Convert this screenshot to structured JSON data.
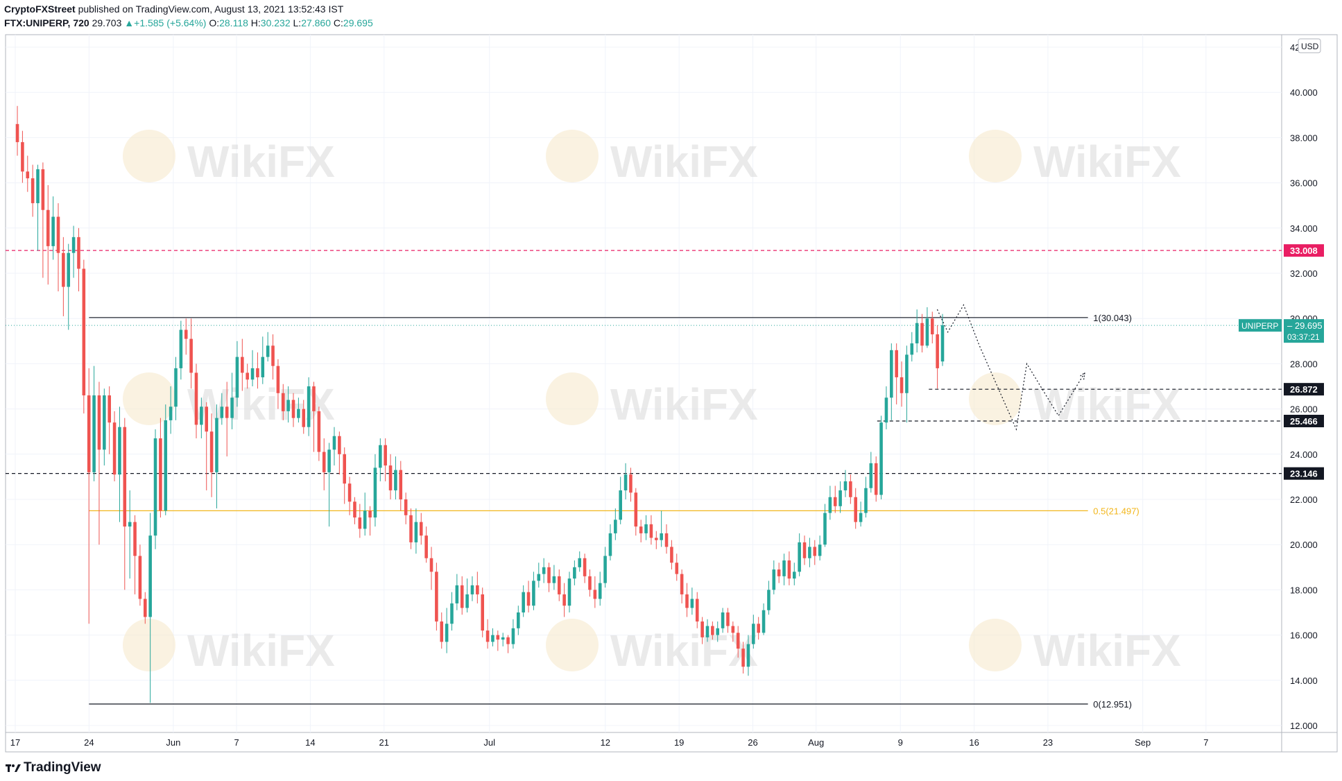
{
  "header": {
    "publisher": "CryptoFXStreet",
    "published_text": "published on TradingView.com, August 13, 2021 13:52:43 IST",
    "symbol": "FTX:UNIPERP, 720",
    "last": "29.703",
    "change": "▲+1.585 (+5.64%)",
    "o_label": "O:",
    "o": "28.118",
    "h_label": "H:",
    "h": "30.232",
    "l_label": "L:",
    "l": "27.860",
    "c_label": "C:",
    "c": "29.695"
  },
  "footer": {
    "brand": "TradingView",
    "logo_icon": "tradingview-logo-icon"
  },
  "watermark": {
    "text": "WikiFX",
    "icon": "wikifx-eagle-icon"
  },
  "chart_data": {
    "type": "candlestick",
    "currency": "USD",
    "ylim": [
      12,
      42
    ],
    "yticks": [
      "12.000",
      "14.000",
      "16.000",
      "18.000",
      "20.000",
      "22.000",
      "24.000",
      "26.000",
      "28.000",
      "30.000",
      "32.000",
      "34.000",
      "36.000",
      "38.000",
      "40.000",
      "42"
    ],
    "xticks": [
      {
        "label": "17",
        "day": 0
      },
      {
        "label": "24",
        "day": 7
      },
      {
        "label": "Jun",
        "day": 15
      },
      {
        "label": "7",
        "day": 21
      },
      {
        "label": "14",
        "day": 28
      },
      {
        "label": "21",
        "day": 35
      },
      {
        "label": "Jul",
        "day": 45
      },
      {
        "label": "12",
        "day": 56
      },
      {
        "label": "19",
        "day": 63
      },
      {
        "label": "26",
        "day": 70
      },
      {
        "label": "Aug",
        "day": 76
      },
      {
        "label": "9",
        "day": 84
      },
      {
        "label": "16",
        "day": 91
      },
      {
        "label": "23",
        "day": 98
      },
      {
        "label": "Sep",
        "day": 107
      },
      {
        "label": "7",
        "day": 113
      }
    ],
    "xlim": [
      0,
      119
    ],
    "fib_levels": [
      {
        "label": "1(30.043)",
        "value": 30.043,
        "color": "#131722"
      },
      {
        "label": "0.5(21.497)",
        "value": 21.497,
        "color": "#f2b61b"
      },
      {
        "label": "0(12.951)",
        "value": 12.951,
        "color": "#131722"
      }
    ],
    "horizontal_levels": [
      {
        "label": "33.008",
        "value": 33.008,
        "color": "#e91e63",
        "style": "dashed"
      },
      {
        "label": "26.872",
        "value": 26.872,
        "color": "#131722",
        "style": "dashed"
      },
      {
        "label": "25.466",
        "value": 25.466,
        "color": "#131722",
        "style": "dashed"
      },
      {
        "label": "23.146",
        "value": 23.146,
        "color": "#131722",
        "style": "dashed"
      }
    ],
    "last_price": {
      "symbol": "UNIPERP",
      "value": "29.695",
      "countdown": "03:37:21",
      "color": "#26a69a"
    },
    "projection_path": [
      [
        87.5,
        30.4
      ],
      [
        88.5,
        29.4
      ],
      [
        90,
        30.6
      ],
      [
        91.5,
        28.8
      ],
      [
        95,
        25.1
      ],
      [
        96,
        28.0
      ],
      [
        99,
        25.7
      ],
      [
        101.5,
        27.6
      ]
    ],
    "candles": [
      [
        38.6,
        37.8,
        39.4,
        37.2
      ],
      [
        37.8,
        36.5,
        38.3,
        36.0
      ],
      [
        36.5,
        36.2,
        37.2,
        35.6
      ],
      [
        36.2,
        35.1,
        36.8,
        34.5
      ],
      [
        35.1,
        36.6,
        36.8,
        33.0
      ],
      [
        36.6,
        34.8,
        36.9,
        31.8
      ],
      [
        34.8,
        33.2,
        35.9,
        31.5
      ],
      [
        33.2,
        34.5,
        35.4,
        32.6
      ],
      [
        34.5,
        32.9,
        35.1,
        31.2
      ],
      [
        32.9,
        31.4,
        33.6,
        30.1
      ],
      [
        31.4,
        32.9,
        33.3,
        29.5
      ],
      [
        32.9,
        33.6,
        34.1,
        31.8
      ],
      [
        33.6,
        32.2,
        34.0,
        31.2
      ],
      [
        32.2,
        26.6,
        32.6,
        25.8
      ],
      [
        26.6,
        23.2,
        27.8,
        16.5
      ],
      [
        23.2,
        26.6,
        27.9,
        22.8
      ],
      [
        26.6,
        24.2,
        27.2,
        20.0
      ],
      [
        24.2,
        26.6,
        26.9,
        23.5
      ],
      [
        26.6,
        25.4,
        27.0,
        24.0
      ],
      [
        25.4,
        23.1,
        25.9,
        22.8
      ],
      [
        23.1,
        25.2,
        26.1,
        21.0
      ],
      [
        25.2,
        20.8,
        25.6,
        18.0
      ],
      [
        20.8,
        21.0,
        22.4,
        18.5
      ],
      [
        21.0,
        19.5,
        21.3,
        17.8
      ],
      [
        19.5,
        17.6,
        20.0,
        17.3
      ],
      [
        17.6,
        16.8,
        17.9,
        16.5
      ],
      [
        16.8,
        20.4,
        21.4,
        13.0
      ],
      [
        20.4,
        24.7,
        25.1,
        19.8
      ],
      [
        24.7,
        21.5,
        25.6,
        21.2
      ],
      [
        21.5,
        25.5,
        26.2,
        21.3
      ],
      [
        25.5,
        26.1,
        27.0,
        24.9
      ],
      [
        26.1,
        27.8,
        28.3,
        25.5
      ],
      [
        27.8,
        29.5,
        29.9,
        27.3
      ],
      [
        29.5,
        29.1,
        30.0,
        28.4
      ],
      [
        29.1,
        27.6,
        30.0,
        26.9
      ],
      [
        27.6,
        25.3,
        28.0,
        24.7
      ],
      [
        25.3,
        26.1,
        26.5,
        24.7
      ],
      [
        26.1,
        25.0,
        26.3,
        22.4
      ],
      [
        25.0,
        23.2,
        25.8,
        22.1
      ],
      [
        23.2,
        25.6,
        26.2,
        21.6
      ],
      [
        25.6,
        26.1,
        26.7,
        25.3
      ],
      [
        26.1,
        25.6,
        27.2,
        23.9
      ],
      [
        25.6,
        26.5,
        27.6,
        25.1
      ],
      [
        26.5,
        28.3,
        29.0,
        26.1
      ],
      [
        28.3,
        27.6,
        29.1,
        26.8
      ],
      [
        27.6,
        27.3,
        28.0,
        26.9
      ],
      [
        27.3,
        27.8,
        28.6,
        27.0
      ],
      [
        27.8,
        27.4,
        28.5,
        26.9
      ],
      [
        27.4,
        28.3,
        29.2,
        27.1
      ],
      [
        28.3,
        28.8,
        29.4,
        28.1
      ],
      [
        28.8,
        27.9,
        29.3,
        27.3
      ],
      [
        27.9,
        26.7,
        28.2,
        26.0
      ],
      [
        26.7,
        25.9,
        27.1,
        25.5
      ],
      [
        25.9,
        26.4,
        27.0,
        25.4
      ],
      [
        26.4,
        25.6,
        26.7,
        25.2
      ],
      [
        25.6,
        26.0,
        26.5,
        25.4
      ],
      [
        26.0,
        25.2,
        26.4,
        24.9
      ],
      [
        25.2,
        27.0,
        27.4,
        24.8
      ],
      [
        27.0,
        25.9,
        27.2,
        24.1
      ],
      [
        25.9,
        24.1,
        26.1,
        23.7
      ],
      [
        24.1,
        23.2,
        24.7,
        22.4
      ],
      [
        23.2,
        24.2,
        24.5,
        20.8
      ],
      [
        24.2,
        24.8,
        25.2,
        23.5
      ],
      [
        24.8,
        24.0,
        25.0,
        23.1
      ],
      [
        24.0,
        22.7,
        24.3,
        21.8
      ],
      [
        22.7,
        21.9,
        23.0,
        21.3
      ],
      [
        21.9,
        21.2,
        22.1,
        20.9
      ],
      [
        21.2,
        20.7,
        21.8,
        20.3
      ],
      [
        20.7,
        21.5,
        22.3,
        20.4
      ],
      [
        21.5,
        21.2,
        21.7,
        20.4
      ],
      [
        21.2,
        23.4,
        24.0,
        20.8
      ],
      [
        23.4,
        24.4,
        24.7,
        22.8
      ],
      [
        24.4,
        23.5,
        24.7,
        22.8
      ],
      [
        23.5,
        22.4,
        24.0,
        22.0
      ],
      [
        22.4,
        23.3,
        23.9,
        22.0
      ],
      [
        23.3,
        22.0,
        23.7,
        21.5
      ],
      [
        22.0,
        21.3,
        22.3,
        20.9
      ],
      [
        21.3,
        20.1,
        21.6,
        19.8
      ],
      [
        20.1,
        21.0,
        21.6,
        19.6
      ],
      [
        21.0,
        20.4,
        21.4,
        20.0
      ],
      [
        20.4,
        19.4,
        20.8,
        19.2
      ],
      [
        19.4,
        18.8,
        19.9,
        18.0
      ],
      [
        18.8,
        16.6,
        19.2,
        16.2
      ],
      [
        16.6,
        15.7,
        17.0,
        15.4
      ],
      [
        15.7,
        16.5,
        17.2,
        15.2
      ],
      [
        16.5,
        17.4,
        17.9,
        16.2
      ],
      [
        17.4,
        18.2,
        18.7,
        17.1
      ],
      [
        18.2,
        17.2,
        18.6,
        16.9
      ],
      [
        17.2,
        17.8,
        18.5,
        17.0
      ],
      [
        17.8,
        18.2,
        18.6,
        17.5
      ],
      [
        18.2,
        17.8,
        18.8,
        17.4
      ],
      [
        17.8,
        16.2,
        18.1,
        15.9
      ],
      [
        16.2,
        15.7,
        16.7,
        15.4
      ],
      [
        15.7,
        16.0,
        16.3,
        15.5
      ],
      [
        16.0,
        15.8,
        16.2,
        15.3
      ],
      [
        15.8,
        15.9,
        16.1,
        15.5
      ],
      [
        15.9,
        15.6,
        16.0,
        15.2
      ],
      [
        15.6,
        16.3,
        16.7,
        15.4
      ],
      [
        16.3,
        17.0,
        17.3,
        16.0
      ],
      [
        17.0,
        17.9,
        18.2,
        16.8
      ],
      [
        17.9,
        17.3,
        18.4,
        17.0
      ],
      [
        17.3,
        18.4,
        18.8,
        17.1
      ],
      [
        18.4,
        18.7,
        19.2,
        18.1
      ],
      [
        18.7,
        19.0,
        19.4,
        18.3
      ],
      [
        19.0,
        18.3,
        19.2,
        17.9
      ],
      [
        18.3,
        18.6,
        19.1,
        18.0
      ],
      [
        18.6,
        17.8,
        18.9,
        17.5
      ],
      [
        17.8,
        17.3,
        18.3,
        16.8
      ],
      [
        17.3,
        18.5,
        18.8,
        17.0
      ],
      [
        18.5,
        19.0,
        19.3,
        18.2
      ],
      [
        19.0,
        19.4,
        19.7,
        18.8
      ],
      [
        19.4,
        18.6,
        19.6,
        18.3
      ],
      [
        18.6,
        18.0,
        18.9,
        17.7
      ],
      [
        18.0,
        17.6,
        18.6,
        17.2
      ],
      [
        17.6,
        18.3,
        18.8,
        17.3
      ],
      [
        18.3,
        19.5,
        19.9,
        18.1
      ],
      [
        19.5,
        20.5,
        20.9,
        19.3
      ],
      [
        20.5,
        21.1,
        21.6,
        20.2
      ],
      [
        21.1,
        22.4,
        23.0,
        20.9
      ],
      [
        22.4,
        23.1,
        23.6,
        22.0
      ],
      [
        23.1,
        22.3,
        23.4,
        21.9
      ],
      [
        22.3,
        20.8,
        22.5,
        20.4
      ],
      [
        20.8,
        20.5,
        21.1,
        20.1
      ],
      [
        20.5,
        20.9,
        21.3,
        20.2
      ],
      [
        20.9,
        20.3,
        21.3,
        20.0
      ],
      [
        20.3,
        20.2,
        20.6,
        19.8
      ],
      [
        20.2,
        20.5,
        21.5,
        19.9
      ],
      [
        20.5,
        19.9,
        20.9,
        19.6
      ],
      [
        19.9,
        19.2,
        20.2,
        18.9
      ],
      [
        19.2,
        18.7,
        19.6,
        18.4
      ],
      [
        18.7,
        17.8,
        18.9,
        17.4
      ],
      [
        17.8,
        17.2,
        18.3,
        16.8
      ],
      [
        17.2,
        17.6,
        18.1,
        16.9
      ],
      [
        17.6,
        16.6,
        17.9,
        16.3
      ],
      [
        16.6,
        15.9,
        16.8,
        15.6
      ],
      [
        15.9,
        16.4,
        16.7,
        15.7
      ],
      [
        16.4,
        16.0,
        16.6,
        15.8
      ],
      [
        16.0,
        16.3,
        16.6,
        15.7
      ],
      [
        16.3,
        17.0,
        17.2,
        16.1
      ],
      [
        17.0,
        16.4,
        17.2,
        16.1
      ],
      [
        16.4,
        16.1,
        16.6,
        15.7
      ],
      [
        16.1,
        15.4,
        16.4,
        15.0
      ],
      [
        15.4,
        14.6,
        15.7,
        14.3
      ],
      [
        14.6,
        15.6,
        16.0,
        14.2
      ],
      [
        15.6,
        16.5,
        16.9,
        15.4
      ],
      [
        16.5,
        16.1,
        16.8,
        15.8
      ],
      [
        16.1,
        17.1,
        17.4,
        16.0
      ],
      [
        17.1,
        18.0,
        18.4,
        16.9
      ],
      [
        18.0,
        18.9,
        19.3,
        17.8
      ],
      [
        18.9,
        18.6,
        19.2,
        18.3
      ],
      [
        18.6,
        19.3,
        19.6,
        18.2
      ],
      [
        19.3,
        18.5,
        19.7,
        18.2
      ],
      [
        18.5,
        18.8,
        19.2,
        18.2
      ],
      [
        18.8,
        20.1,
        20.5,
        18.6
      ],
      [
        20.1,
        19.4,
        20.4,
        19.1
      ],
      [
        19.4,
        19.9,
        20.3,
        19.0
      ],
      [
        19.9,
        19.5,
        20.2,
        19.1
      ],
      [
        19.5,
        20.0,
        20.4,
        19.3
      ],
      [
        20.0,
        21.4,
        21.8,
        19.9
      ],
      [
        21.4,
        22.1,
        22.6,
        21.1
      ],
      [
        22.1,
        21.7,
        22.6,
        21.4
      ],
      [
        21.7,
        22.4,
        22.8,
        21.4
      ],
      [
        22.4,
        22.8,
        23.3,
        22.1
      ],
      [
        22.8,
        22.1,
        23.1,
        21.8
      ],
      [
        22.1,
        21.0,
        22.5,
        20.7
      ],
      [
        21.0,
        21.4,
        21.9,
        20.8
      ],
      [
        21.4,
        22.5,
        23.0,
        21.2
      ],
      [
        22.5,
        23.6,
        24.1,
        22.3
      ],
      [
        23.6,
        22.2,
        23.9,
        21.9
      ],
      [
        22.2,
        25.4,
        25.7,
        22.0
      ],
      [
        25.4,
        26.5,
        27.0,
        25.1
      ],
      [
        26.5,
        28.6,
        28.9,
        25.5
      ],
      [
        28.6,
        27.4,
        28.9,
        26.2
      ],
      [
        27.4,
        26.7,
        28.1,
        26.1
      ],
      [
        26.7,
        28.4,
        28.8,
        25.4
      ],
      [
        28.4,
        28.9,
        29.4,
        28.1
      ],
      [
        28.9,
        29.8,
        30.4,
        28.5
      ],
      [
        29.8,
        28.8,
        30.2,
        28.5
      ],
      [
        28.8,
        30.0,
        30.5,
        28.7
      ],
      [
        30.0,
        29.3,
        30.3,
        28.9
      ],
      [
        29.3,
        27.8,
        29.7,
        26.9
      ],
      [
        28.1,
        29.7,
        30.2,
        27.9
      ]
    ]
  }
}
